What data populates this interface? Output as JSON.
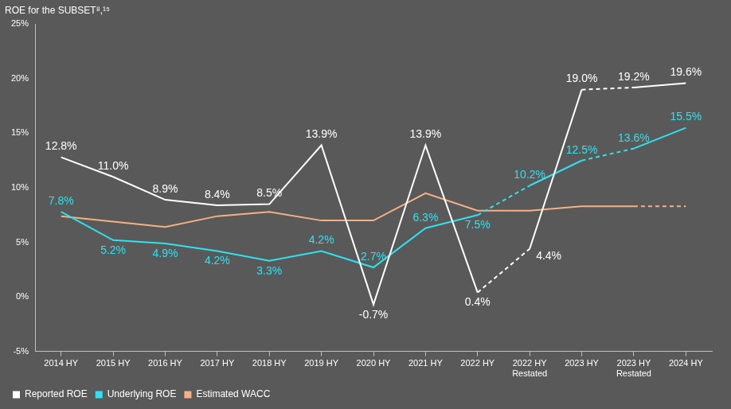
{
  "chart_data": {
    "type": "line",
    "title": "ROE for the SUBSET⁸,¹⁵",
    "categories": [
      "2014 HY",
      "2015 HY",
      "2016 HY",
      "2017 HY",
      "2018 HY",
      "2019 HY",
      "2020 HY",
      "2021 HY",
      "2022 HY",
      "2022 HY Restated",
      "2023 HY",
      "2023 HY Restated",
      "2024 HY"
    ],
    "series": [
      {
        "name": "Reported ROE",
        "color": "#ffffff",
        "values": [
          12.8,
          11.0,
          8.9,
          8.4,
          8.5,
          13.9,
          -0.7,
          13.9,
          0.4,
          4.4,
          19.0,
          19.2,
          19.6
        ],
        "value_labels": [
          "12.8%",
          "11.0%",
          "8.9%",
          "8.4%",
          "8.5%",
          "13.9%",
          "-0.7%",
          "13.9%",
          "0.4%",
          "4.4%",
          "19.0%",
          "19.2%",
          "19.6%"
        ],
        "data_labels": true,
        "line_style": [
          "solid",
          "solid",
          "solid",
          "solid",
          "solid",
          "solid",
          "solid",
          "solid",
          "dashed",
          "solid",
          "dashed",
          "solid"
        ]
      },
      {
        "name": "Underlying ROE",
        "color": "#2ee3ef",
        "values": [
          7.8,
          5.2,
          4.9,
          4.2,
          3.3,
          4.2,
          2.7,
          6.3,
          7.5,
          10.2,
          12.5,
          13.6,
          15.5
        ],
        "value_labels": [
          "7.8%",
          "5.2%",
          "4.9%",
          "4.2%",
          "3.3%",
          "4.2%",
          "2.7%",
          "6.3%",
          "7.5%",
          "10.2%",
          "12.5%",
          "13.6%",
          "15.5%"
        ],
        "data_labels": true,
        "line_style": [
          "solid",
          "solid",
          "solid",
          "solid",
          "solid",
          "solid",
          "solid",
          "solid",
          "dashed",
          "solid",
          "dashed",
          "solid"
        ]
      },
      {
        "name": "Estimated WACC",
        "color": "#f5b185",
        "values": [
          7.4,
          6.9,
          6.4,
          7.4,
          7.8,
          7.0,
          7.0,
          9.5,
          7.9,
          7.9,
          8.3,
          8.3,
          8.3
        ],
        "data_labels": false,
        "line_style": [
          "solid",
          "solid",
          "solid",
          "solid",
          "solid",
          "solid",
          "solid",
          "solid",
          "solid",
          "solid",
          "solid",
          "dashed"
        ]
      }
    ],
    "ylim": [
      -5,
      25
    ],
    "yticks": [
      {
        "value": -5,
        "label": "-5%"
      },
      {
        "value": 0,
        "label": "0%"
      },
      {
        "value": 5,
        "label": "5%"
      },
      {
        "value": 10,
        "label": "10%"
      },
      {
        "value": 15,
        "label": "15%"
      },
      {
        "value": 20,
        "label": "20%"
      },
      {
        "value": 25,
        "label": "25%"
      }
    ],
    "grid": false,
    "legend": "bottom-left"
  }
}
